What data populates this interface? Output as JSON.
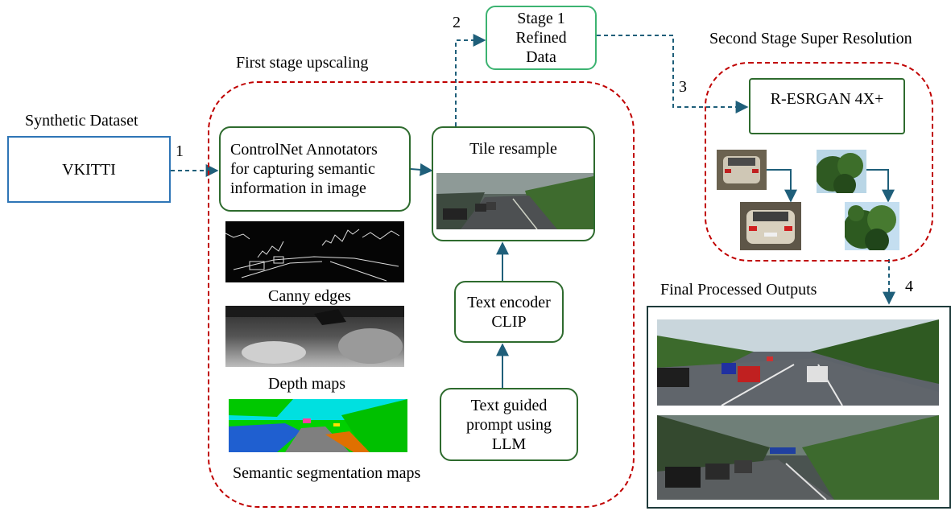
{
  "labels": {
    "synthetic_dataset": "Synthetic Dataset",
    "first_stage": "First stage upscaling",
    "second_stage": "Second Stage Super Resolution",
    "final_outputs": "Final Processed Outputs",
    "canny": "Canny edges",
    "depth": "Depth maps",
    "semantic": "Semantic segmentation maps"
  },
  "boxes": {
    "vkitti": "VKITTI",
    "controlnet": "ControlNet Annotators\nfor capturing semantic\ninformation in image",
    "tile_resample": "Tile resample",
    "text_encoder": "Text encoder\nCLIP",
    "text_prompt": "Text guided\nprompt using\nLLM",
    "stage1": "Stage 1\nRefined\nData",
    "resrgan": "R-ESRGAN 4X+"
  },
  "steps": [
    "1",
    "2",
    "3",
    "4"
  ],
  "colors": {
    "blue_box": "#2e75b6",
    "green_box": "#2e6b2e",
    "stage1_box": "#3cb371",
    "dashed_red": "#c00000",
    "arrow": "#1f5f7a"
  }
}
